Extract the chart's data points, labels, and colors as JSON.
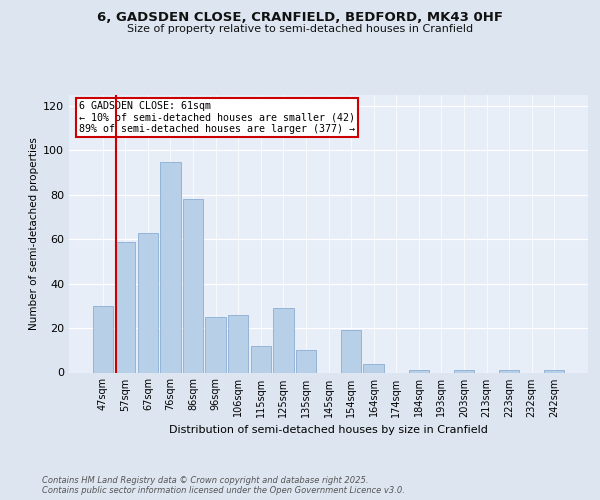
{
  "title1": "6, GADSDEN CLOSE, CRANFIELD, BEDFORD, MK43 0HF",
  "title2": "Size of property relative to semi-detached houses in Cranfield",
  "xlabel": "Distribution of semi-detached houses by size in Cranfield",
  "ylabel": "Number of semi-detached properties",
  "categories": [
    "47sqm",
    "57sqm",
    "67sqm",
    "76sqm",
    "86sqm",
    "96sqm",
    "106sqm",
    "115sqm",
    "125sqm",
    "135sqm",
    "145sqm",
    "154sqm",
    "164sqm",
    "174sqm",
    "184sqm",
    "193sqm",
    "203sqm",
    "213sqm",
    "223sqm",
    "232sqm",
    "242sqm"
  ],
  "values": [
    30,
    59,
    63,
    95,
    78,
    25,
    26,
    12,
    29,
    10,
    0,
    19,
    4,
    0,
    1,
    0,
    1,
    0,
    1,
    0,
    1
  ],
  "bar_color": "#b8cfe8",
  "bar_edge_color": "#8aadd4",
  "vline_x_index": 1.57,
  "annotation_text": "6 GADSDEN CLOSE: 61sqm\n← 10% of semi-detached houses are smaller (42)\n89% of semi-detached houses are larger (377) →",
  "annotation_box_color": "#ffffff",
  "annotation_box_edge": "#cc0000",
  "vline_color": "#cc0000",
  "footer1": "Contains HM Land Registry data © Crown copyright and database right 2025.",
  "footer2": "Contains public sector information licensed under the Open Government Licence v3.0.",
  "bg_color": "#dde6f0",
  "plot_bg_color": "#e8eef8",
  "ylim": [
    0,
    125
  ],
  "yticks": [
    0,
    20,
    40,
    60,
    80,
    100,
    120
  ]
}
